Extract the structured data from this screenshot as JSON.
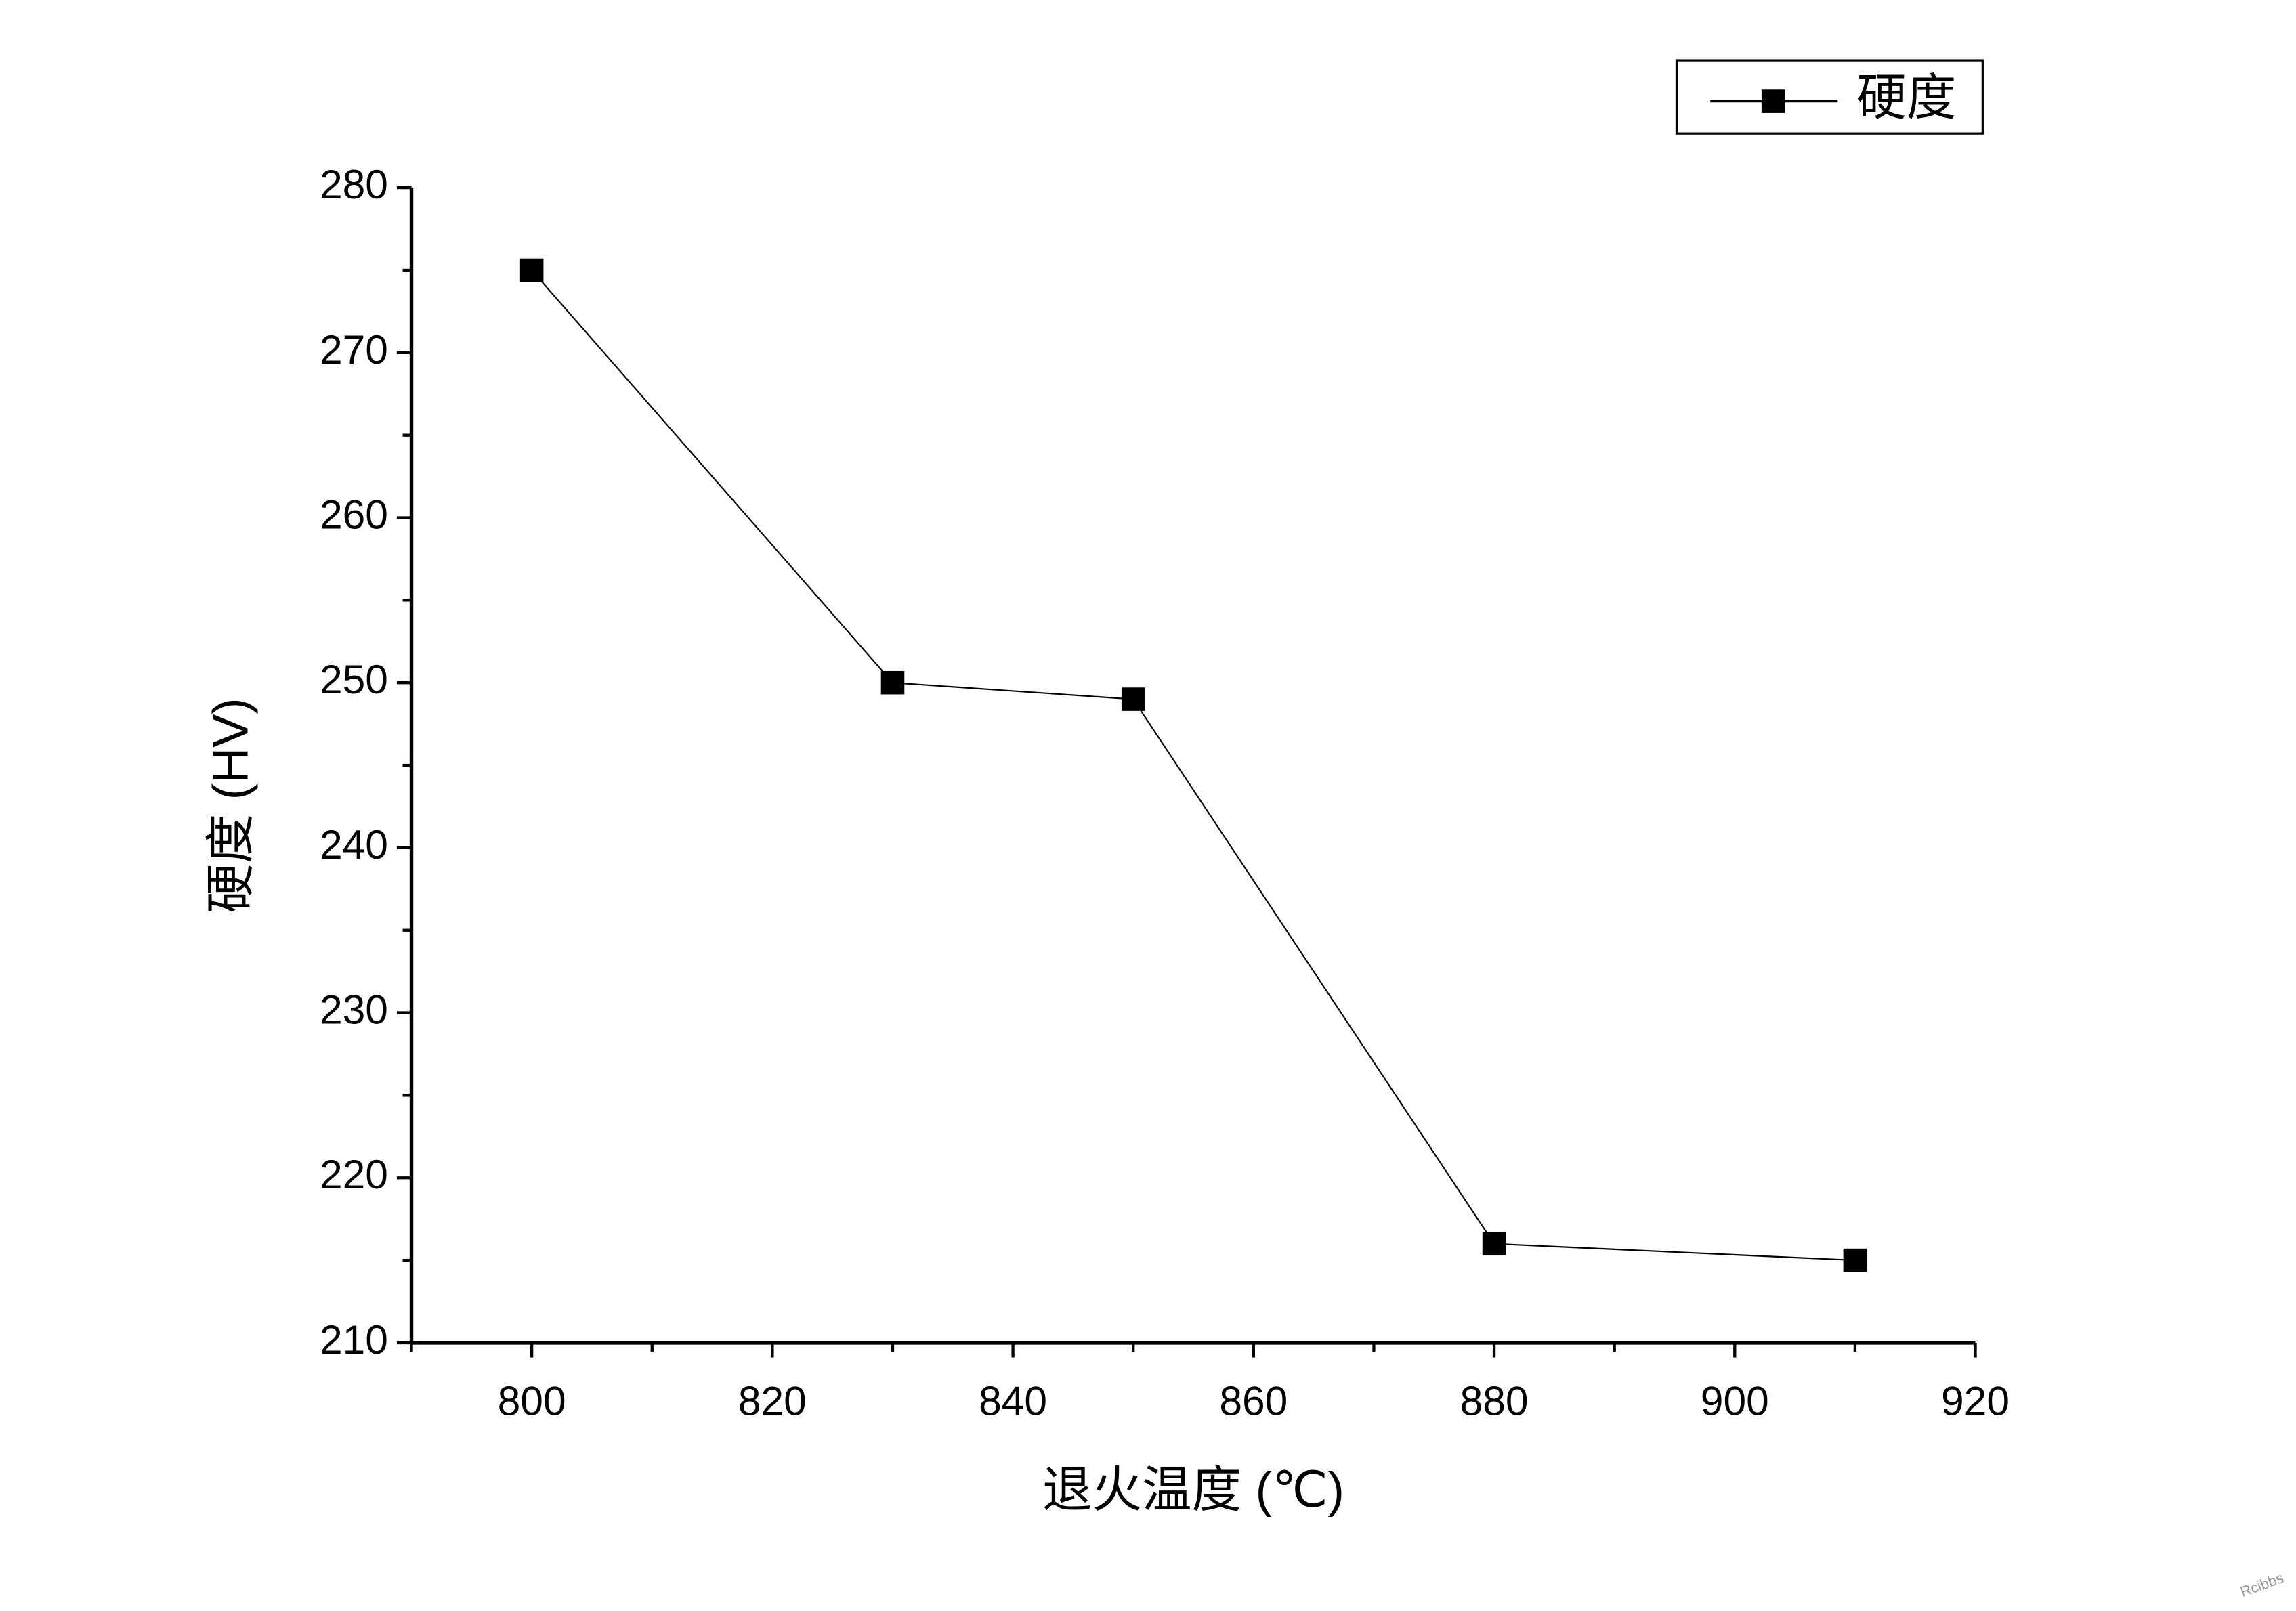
{
  "chart_data": {
    "type": "line",
    "x": [
      800,
      830,
      850,
      880,
      910
    ],
    "series": [
      {
        "name": "硬度",
        "color": "#000000",
        "values": [
          275,
          250,
          249,
          216,
          215
        ]
      }
    ],
    "xlabel": "退火温度 (℃)",
    "ylabel": "硬度 (HV)",
    "xlim": [
      790,
      920
    ],
    "xticks": [
      800,
      820,
      840,
      860,
      880,
      900,
      920
    ],
    "ylim": [
      210,
      280
    ],
    "yticks": [
      210,
      220,
      230,
      240,
      250,
      260,
      270,
      280
    ],
    "grid": false,
    "legend": "top-right",
    "watermark": "Rcibbs"
  }
}
